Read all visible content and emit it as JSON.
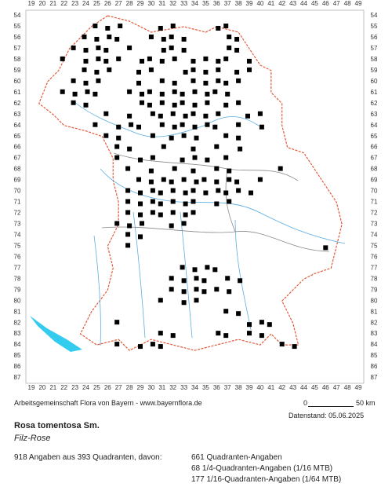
{
  "grid": {
    "columns": [
      19,
      20,
      21,
      22,
      23,
      24,
      25,
      26,
      27,
      28,
      29,
      30,
      31,
      32,
      33,
      34,
      35,
      36,
      37,
      38,
      39,
      40,
      41,
      42,
      43,
      44,
      45,
      46,
      47,
      48,
      49
    ],
    "rows": [
      54,
      55,
      56,
      57,
      58,
      59,
      60,
      61,
      62,
      63,
      64,
      65,
      66,
      67,
      68,
      69,
      70,
      71,
      72,
      73,
      74,
      75,
      76,
      77,
      78,
      79,
      80,
      81,
      82,
      83,
      84,
      85,
      86,
      87
    ]
  },
  "footer": {
    "credit": "Arbeitsgemeinschaft Flora von Bayern - www.bayernflora.de",
    "scale_start": "0",
    "scale_end": "50 km",
    "date": "Datenstand: 05.06.2025"
  },
  "species": {
    "name": "Rosa tomentosa Sm.",
    "common_name": "Filz-Rose"
  },
  "stats": {
    "summary": "918 Angaben aus 393 Quadranten, davon:",
    "lines": [
      "661 Quadranten-Angaben",
      "68 1/4-Quadranten-Angaben (1/16 MTB)",
      "177 1/16-Quadranten-Angaben (1/64 MTB)"
    ]
  }
}
